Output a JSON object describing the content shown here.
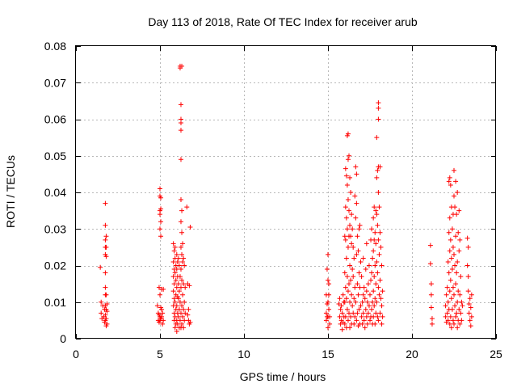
{
  "chart_data": {
    "type": "scatter",
    "title": "Day 113 of 2018, Rate Of TEC Index for receiver arub",
    "xlabel": "GPS time / hours",
    "ylabel": "ROTI / TECUs",
    "xlim": [
      0,
      25
    ],
    "ylim": [
      0,
      0.08
    ],
    "xticks": [
      0,
      5,
      10,
      15,
      20,
      25
    ],
    "yticks": [
      0,
      0.01,
      0.02,
      0.03,
      0.04,
      0.05,
      0.06,
      0.07,
      0.08
    ],
    "xtick_labels": [
      "0",
      "5",
      "10",
      "15",
      "20",
      "25"
    ],
    "ytick_labels": [
      "0",
      "0.01",
      "0.02",
      "0.03",
      "0.04",
      "0.05",
      "0.06",
      "0.07",
      "0.08"
    ],
    "grid": true,
    "marker": "plus",
    "color": "#ff0000",
    "points": [
      [
        1.45,
        0.0195
      ],
      [
        1.5,
        0.01
      ],
      [
        1.5,
        0.007
      ],
      [
        1.55,
        0.0055
      ],
      [
        1.6,
        0.009
      ],
      [
        1.65,
        0.006
      ],
      [
        1.7,
        0.008
      ],
      [
        1.7,
        0.0045
      ],
      [
        1.75,
        0.037
      ],
      [
        1.75,
        0.031
      ],
      [
        1.75,
        0.027
      ],
      [
        1.75,
        0.025
      ],
      [
        1.75,
        0.023
      ],
      [
        1.75,
        0.018
      ],
      [
        1.75,
        0.014
      ],
      [
        1.75,
        0.012
      ],
      [
        1.75,
        0.009
      ],
      [
        1.75,
        0.0065
      ],
      [
        1.75,
        0.005
      ],
      [
        1.8,
        0.028
      ],
      [
        1.8,
        0.025
      ],
      [
        1.8,
        0.0225
      ],
      [
        1.8,
        0.012
      ],
      [
        1.8,
        0.008
      ],
      [
        1.8,
        0.0055
      ],
      [
        1.8,
        0.0035
      ],
      [
        1.85,
        0.0075
      ],
      [
        1.85,
        0.004
      ],
      [
        1.85,
        0.0095
      ],
      [
        4.85,
        0.009
      ],
      [
        4.9,
        0.007
      ],
      [
        4.9,
        0.005
      ],
      [
        4.95,
        0.014
      ],
      [
        4.95,
        0.0065
      ],
      [
        4.95,
        0.0045
      ],
      [
        5.0,
        0.041
      ],
      [
        5.0,
        0.039
      ],
      [
        5.0,
        0.035
      ],
      [
        5.0,
        0.034
      ],
      [
        5.0,
        0.03
      ],
      [
        5.0,
        0.012
      ],
      [
        5.0,
        0.006
      ],
      [
        5.0,
        0.005
      ],
      [
        5.05,
        0.0385
      ],
      [
        5.05,
        0.0355
      ],
      [
        5.05,
        0.032
      ],
      [
        5.05,
        0.028
      ],
      [
        5.05,
        0.0085
      ],
      [
        5.05,
        0.0055
      ],
      [
        5.1,
        0.0135
      ],
      [
        5.1,
        0.008
      ],
      [
        5.1,
        0.006
      ],
      [
        5.15,
        0.007
      ],
      [
        5.15,
        0.004
      ],
      [
        5.2,
        0.0135
      ],
      [
        5.2,
        0.005
      ],
      [
        5.8,
        0.026
      ],
      [
        5.8,
        0.021
      ],
      [
        5.8,
        0.017
      ],
      [
        5.8,
        0.013
      ],
      [
        5.8,
        0.009
      ],
      [
        5.85,
        0.024
      ],
      [
        5.85,
        0.019
      ],
      [
        5.85,
        0.015
      ],
      [
        5.85,
        0.011
      ],
      [
        5.85,
        0.007
      ],
      [
        5.85,
        0.005
      ],
      [
        5.9,
        0.025
      ],
      [
        5.9,
        0.022
      ],
      [
        5.9,
        0.018
      ],
      [
        5.9,
        0.01
      ],
      [
        5.9,
        0.006
      ],
      [
        5.9,
        0.003
      ],
      [
        5.95,
        0.02
      ],
      [
        5.95,
        0.016
      ],
      [
        5.95,
        0.012
      ],
      [
        5.95,
        0.008
      ],
      [
        5.95,
        0.004
      ],
      [
        6.0,
        0.023
      ],
      [
        6.0,
        0.019
      ],
      [
        6.0,
        0.014
      ],
      [
        6.0,
        0.009
      ],
      [
        6.0,
        0.005
      ],
      [
        6.0,
        0.002
      ],
      [
        6.05,
        0.021
      ],
      [
        6.05,
        0.017
      ],
      [
        6.05,
        0.0115
      ],
      [
        6.05,
        0.007
      ],
      [
        6.05,
        0.004
      ],
      [
        6.1,
        0.022
      ],
      [
        6.1,
        0.015
      ],
      [
        6.1,
        0.011
      ],
      [
        6.1,
        0.006
      ],
      [
        6.15,
        0.02
      ],
      [
        6.15,
        0.013
      ],
      [
        6.15,
        0.008
      ],
      [
        6.15,
        0.003
      ],
      [
        6.2,
        0.0745
      ],
      [
        6.2,
        0.074
      ],
      [
        6.2,
        0.017
      ],
      [
        6.2,
        0.01
      ],
      [
        6.2,
        0.005
      ],
      [
        6.25,
        0.064
      ],
      [
        6.25,
        0.06
      ],
      [
        6.25,
        0.059
      ],
      [
        6.25,
        0.057
      ],
      [
        6.25,
        0.049
      ],
      [
        6.25,
        0.038
      ],
      [
        6.25,
        0.032
      ],
      [
        6.25,
        0.025
      ],
      [
        6.25,
        0.019
      ],
      [
        6.25,
        0.014
      ],
      [
        6.25,
        0.007
      ],
      [
        6.25,
        0.003
      ],
      [
        6.3,
        0.0745
      ],
      [
        6.3,
        0.035
      ],
      [
        6.3,
        0.029
      ],
      [
        6.3,
        0.023
      ],
      [
        6.3,
        0.016
      ],
      [
        6.3,
        0.009
      ],
      [
        6.3,
        0.004
      ],
      [
        6.35,
        0.026
      ],
      [
        6.35,
        0.021
      ],
      [
        6.35,
        0.012
      ],
      [
        6.35,
        0.006
      ],
      [
        6.4,
        0.022
      ],
      [
        6.4,
        0.015
      ],
      [
        6.4,
        0.008
      ],
      [
        6.4,
        0.003
      ],
      [
        6.45,
        0.02
      ],
      [
        6.45,
        0.01
      ],
      [
        6.45,
        0.005
      ],
      [
        6.5,
        0.014
      ],
      [
        6.5,
        0.007
      ],
      [
        6.6,
        0.036
      ],
      [
        6.65,
        0.015
      ],
      [
        6.65,
        0.0065
      ],
      [
        6.7,
        0.005
      ],
      [
        6.7,
        0.008
      ],
      [
        6.75,
        0.0145
      ],
      [
        6.75,
        0.004
      ],
      [
        6.8,
        0.0305
      ],
      [
        6.8,
        0.0045
      ],
      [
        14.9,
        0.012
      ],
      [
        14.9,
        0.007
      ],
      [
        14.9,
        0.005
      ],
      [
        14.95,
        0.019
      ],
      [
        14.95,
        0.0095
      ],
      [
        14.95,
        0.006
      ],
      [
        15.0,
        0.023
      ],
      [
        15.0,
        0.016
      ],
      [
        15.0,
        0.01
      ],
      [
        15.0,
        0.006
      ],
      [
        15.0,
        0.003
      ],
      [
        15.05,
        0.015
      ],
      [
        15.05,
        0.012
      ],
      [
        15.05,
        0.008
      ],
      [
        15.1,
        0.004
      ],
      [
        15.1,
        0.006
      ],
      [
        15.65,
        0.0095
      ],
      [
        15.7,
        0.011
      ],
      [
        15.7,
        0.006
      ],
      [
        15.75,
        0.004
      ],
      [
        15.75,
        0.008
      ],
      [
        15.8,
        0.009
      ],
      [
        15.8,
        0.005
      ],
      [
        15.85,
        0.0025
      ],
      [
        15.85,
        0.007
      ],
      [
        15.9,
        0.012
      ],
      [
        15.9,
        0.0045
      ],
      [
        15.95,
        0.01
      ],
      [
        15.95,
        0.006
      ],
      [
        16.0,
        0.028
      ],
      [
        16.0,
        0.018
      ],
      [
        16.0,
        0.01
      ],
      [
        16.0,
        0.004
      ],
      [
        16.05,
        0.0465
      ],
      [
        16.05,
        0.036
      ],
      [
        16.05,
        0.027
      ],
      [
        16.05,
        0.014
      ],
      [
        16.05,
        0.006
      ],
      [
        16.1,
        0.0445
      ],
      [
        16.1,
        0.033
      ],
      [
        16.1,
        0.022
      ],
      [
        16.1,
        0.011
      ],
      [
        16.1,
        0.003
      ],
      [
        16.15,
        0.0555
      ],
      [
        16.15,
        0.042
      ],
      [
        16.15,
        0.03
      ],
      [
        16.15,
        0.017
      ],
      [
        16.15,
        0.008
      ],
      [
        16.2,
        0.056
      ],
      [
        16.2,
        0.049
      ],
      [
        16.2,
        0.038
      ],
      [
        16.2,
        0.025
      ],
      [
        16.2,
        0.013
      ],
      [
        16.2,
        0.005
      ],
      [
        16.25,
        0.05
      ],
      [
        16.25,
        0.035
      ],
      [
        16.25,
        0.028
      ],
      [
        16.25,
        0.015
      ],
      [
        16.25,
        0.007
      ],
      [
        16.3,
        0.044
      ],
      [
        16.3,
        0.031
      ],
      [
        16.3,
        0.02
      ],
      [
        16.3,
        0.01
      ],
      [
        16.3,
        0.003
      ],
      [
        16.35,
        0.04
      ],
      [
        16.35,
        0.028
      ],
      [
        16.35,
        0.016
      ],
      [
        16.35,
        0.006
      ],
      [
        16.4,
        0.034
      ],
      [
        16.4,
        0.026
      ],
      [
        16.4,
        0.012
      ],
      [
        16.4,
        0.004
      ],
      [
        16.45,
        0.03
      ],
      [
        16.45,
        0.019
      ],
      [
        16.45,
        0.009
      ],
      [
        16.5,
        0.025
      ],
      [
        16.5,
        0.017
      ],
      [
        16.5,
        0.007
      ],
      [
        16.55,
        0.022
      ],
      [
        16.55,
        0.011
      ],
      [
        16.55,
        0.004
      ],
      [
        16.6,
        0.039
      ],
      [
        16.6,
        0.014
      ],
      [
        16.6,
        0.006
      ],
      [
        16.65,
        0.047
      ],
      [
        16.65,
        0.033
      ],
      [
        16.65,
        0.01
      ],
      [
        16.7,
        0.045
      ],
      [
        16.7,
        0.037
      ],
      [
        16.7,
        0.023
      ],
      [
        16.7,
        0.005
      ],
      [
        16.75,
        0.028
      ],
      [
        16.75,
        0.015
      ],
      [
        16.75,
        0.007
      ],
      [
        16.8,
        0.024
      ],
      [
        16.8,
        0.012
      ],
      [
        16.8,
        0.0035
      ],
      [
        16.85,
        0.03
      ],
      [
        16.85,
        0.018
      ],
      [
        16.85,
        0.008
      ],
      [
        16.9,
        0.031
      ],
      [
        16.9,
        0.014
      ],
      [
        16.9,
        0.004
      ],
      [
        16.95,
        0.021
      ],
      [
        16.95,
        0.009
      ],
      [
        17.0,
        0.017
      ],
      [
        17.0,
        0.006
      ],
      [
        17.05,
        0.01
      ],
      [
        17.05,
        0.004
      ],
      [
        17.1,
        0.022
      ],
      [
        17.1,
        0.012
      ],
      [
        17.1,
        0.007
      ],
      [
        17.15,
        0.014
      ],
      [
        17.15,
        0.005
      ],
      [
        17.2,
        0.011
      ],
      [
        17.2,
        0.003
      ],
      [
        17.25,
        0.019
      ],
      [
        17.25,
        0.008
      ],
      [
        17.3,
        0.026
      ],
      [
        17.3,
        0.013
      ],
      [
        17.3,
        0.006
      ],
      [
        17.35,
        0.01
      ],
      [
        17.35,
        0.004
      ],
      [
        17.4,
        0.015
      ],
      [
        17.4,
        0.007
      ],
      [
        17.45,
        0.02
      ],
      [
        17.45,
        0.009
      ],
      [
        17.5,
        0.012
      ],
      [
        17.5,
        0.005
      ],
      [
        17.55,
        0.027
      ],
      [
        17.55,
        0.016
      ],
      [
        17.55,
        0.006
      ],
      [
        17.6,
        0.03
      ],
      [
        17.6,
        0.018
      ],
      [
        17.6,
        0.008
      ],
      [
        17.65,
        0.022
      ],
      [
        17.65,
        0.01
      ],
      [
        17.65,
        0.004
      ],
      [
        17.7,
        0.033
      ],
      [
        17.7,
        0.024
      ],
      [
        17.7,
        0.013
      ],
      [
        17.7,
        0.006
      ],
      [
        17.75,
        0.036
      ],
      [
        17.75,
        0.027
      ],
      [
        17.75,
        0.017
      ],
      [
        17.75,
        0.009
      ],
      [
        17.8,
        0.029
      ],
      [
        17.8,
        0.02
      ],
      [
        17.8,
        0.011
      ],
      [
        17.8,
        0.004
      ],
      [
        17.85,
        0.035
      ],
      [
        17.85,
        0.026
      ],
      [
        17.85,
        0.015
      ],
      [
        17.85,
        0.007
      ],
      [
        17.9,
        0.055
      ],
      [
        17.9,
        0.044
      ],
      [
        17.9,
        0.034
      ],
      [
        17.9,
        0.021
      ],
      [
        17.9,
        0.01
      ],
      [
        17.95,
        0.046
      ],
      [
        17.95,
        0.031
      ],
      [
        17.95,
        0.018
      ],
      [
        17.95,
        0.006
      ],
      [
        18.0,
        0.0645
      ],
      [
        18.0,
        0.063
      ],
      [
        18.0,
        0.06
      ],
      [
        18.0,
        0.047
      ],
      [
        18.0,
        0.04
      ],
      [
        18.0,
        0.027
      ],
      [
        18.0,
        0.014
      ],
      [
        18.0,
        0.005
      ],
      [
        18.05,
        0.036
      ],
      [
        18.05,
        0.023
      ],
      [
        18.05,
        0.012
      ],
      [
        18.1,
        0.047
      ],
      [
        18.1,
        0.029
      ],
      [
        18.1,
        0.016
      ],
      [
        18.1,
        0.007
      ],
      [
        18.15,
        0.025
      ],
      [
        18.15,
        0.011
      ],
      [
        18.2,
        0.02
      ],
      [
        18.2,
        0.009
      ],
      [
        18.2,
        0.004
      ],
      [
        18.25,
        0.013
      ],
      [
        18.25,
        0.006
      ],
      [
        21.1,
        0.0255
      ],
      [
        21.1,
        0.0205
      ],
      [
        21.15,
        0.015
      ],
      [
        21.15,
        0.012
      ],
      [
        21.15,
        0.0085
      ],
      [
        21.2,
        0.0055
      ],
      [
        21.2,
        0.004
      ],
      [
        22.0,
        0.009
      ],
      [
        22.0,
        0.006
      ],
      [
        22.05,
        0.012
      ],
      [
        22.05,
        0.0045
      ],
      [
        22.1,
        0.014
      ],
      [
        22.1,
        0.007
      ],
      [
        22.15,
        0.021
      ],
      [
        22.15,
        0.01
      ],
      [
        22.15,
        0.005
      ],
      [
        22.2,
        0.043
      ],
      [
        22.2,
        0.029
      ],
      [
        22.2,
        0.018
      ],
      [
        22.2,
        0.008
      ],
      [
        22.25,
        0.044
      ],
      [
        22.25,
        0.033
      ],
      [
        22.25,
        0.024
      ],
      [
        22.25,
        0.013
      ],
      [
        22.25,
        0.004
      ],
      [
        22.3,
        0.042
      ],
      [
        22.3,
        0.027
      ],
      [
        22.3,
        0.016
      ],
      [
        22.3,
        0.006
      ],
      [
        22.35,
        0.036
      ],
      [
        22.35,
        0.022
      ],
      [
        22.35,
        0.011
      ],
      [
        22.35,
        0.003
      ],
      [
        22.4,
        0.03
      ],
      [
        22.4,
        0.019
      ],
      [
        22.4,
        0.008
      ],
      [
        22.45,
        0.034
      ],
      [
        22.45,
        0.025
      ],
      [
        22.45,
        0.014
      ],
      [
        22.45,
        0.005
      ],
      [
        22.5,
        0.046
      ],
      [
        22.5,
        0.039
      ],
      [
        22.5,
        0.023
      ],
      [
        22.5,
        0.012
      ],
      [
        22.5,
        0.004
      ],
      [
        22.55,
        0.036
      ],
      [
        22.55,
        0.02
      ],
      [
        22.55,
        0.009
      ],
      [
        22.6,
        0.043
      ],
      [
        22.6,
        0.028
      ],
      [
        22.6,
        0.015
      ],
      [
        22.6,
        0.006
      ],
      [
        22.65,
        0.034
      ],
      [
        22.65,
        0.018
      ],
      [
        22.65,
        0.007
      ],
      [
        22.7,
        0.04
      ],
      [
        22.7,
        0.021
      ],
      [
        22.7,
        0.01
      ],
      [
        22.7,
        0.003
      ],
      [
        22.75,
        0.029
      ],
      [
        22.75,
        0.013
      ],
      [
        22.75,
        0.005
      ],
      [
        22.8,
        0.035
      ],
      [
        22.8,
        0.024
      ],
      [
        22.8,
        0.008
      ],
      [
        22.85,
        0.027
      ],
      [
        22.85,
        0.012
      ],
      [
        22.85,
        0.004
      ],
      [
        22.9,
        0.017
      ],
      [
        22.9,
        0.007
      ],
      [
        22.95,
        0.01
      ],
      [
        22.95,
        0.005
      ],
      [
        23.0,
        0.009
      ],
      [
        23.3,
        0.0275
      ],
      [
        23.3,
        0.02
      ],
      [
        23.35,
        0.025
      ],
      [
        23.35,
        0.017
      ],
      [
        23.35,
        0.013
      ],
      [
        23.4,
        0.0095
      ],
      [
        23.4,
        0.007
      ],
      [
        23.45,
        0.011
      ],
      [
        23.45,
        0.005
      ],
      [
        23.5,
        0.0085
      ],
      [
        23.5,
        0.0035
      ],
      [
        23.55,
        0.012
      ],
      [
        23.55,
        0.006
      ]
    ]
  }
}
